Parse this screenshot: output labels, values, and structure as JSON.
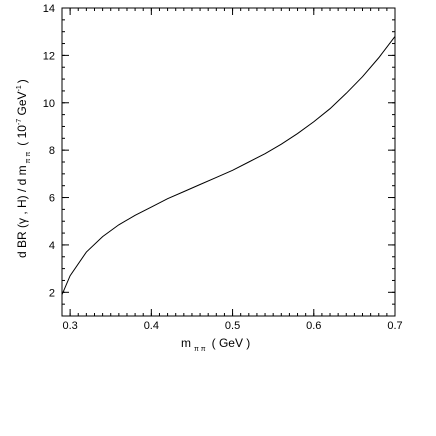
{
  "chart_data": {
    "type": "line",
    "xlim": [
      0.29,
      0.7
    ],
    "ylim": [
      1,
      14
    ],
    "x_ticks": [
      0.3,
      0.4,
      0.5,
      0.6,
      0.7
    ],
    "x_tick_labels": [
      "0.3",
      "0.4",
      "0.5",
      "0.6",
      "0.7"
    ],
    "y_ticks": [
      2,
      4,
      6,
      8,
      10,
      12,
      14
    ],
    "y_tick_labels": [
      "2",
      "4",
      "6",
      "8",
      "10",
      "12",
      "14"
    ],
    "x_minor_step": 0.01,
    "y_minor_step": 0.5,
    "grid": false,
    "xlabel": {
      "main": "m",
      "sub": "π π",
      "unit": "( GeV )"
    },
    "ylabel": {
      "main": "d BR (γ , H) / d m",
      "sub": "π π",
      "unit_open": "( 10",
      "unit_exp": "-7",
      "unit_mid": " GeV",
      "unit_exp2": "-1",
      "unit_close": ")"
    },
    "series": [
      {
        "x": [
          0.29,
          0.3,
          0.32,
          0.34,
          0.36,
          0.38,
          0.4,
          0.42,
          0.44,
          0.46,
          0.48,
          0.5,
          0.52,
          0.54,
          0.56,
          0.58,
          0.6,
          0.62,
          0.64,
          0.66,
          0.68,
          0.7
        ],
        "y": [
          1.9,
          2.7,
          3.7,
          4.35,
          4.85,
          5.25,
          5.6,
          5.95,
          6.25,
          6.55,
          6.85,
          7.15,
          7.5,
          7.85,
          8.25,
          8.7,
          9.2,
          9.75,
          10.4,
          11.1,
          11.9,
          12.8
        ]
      }
    ]
  }
}
